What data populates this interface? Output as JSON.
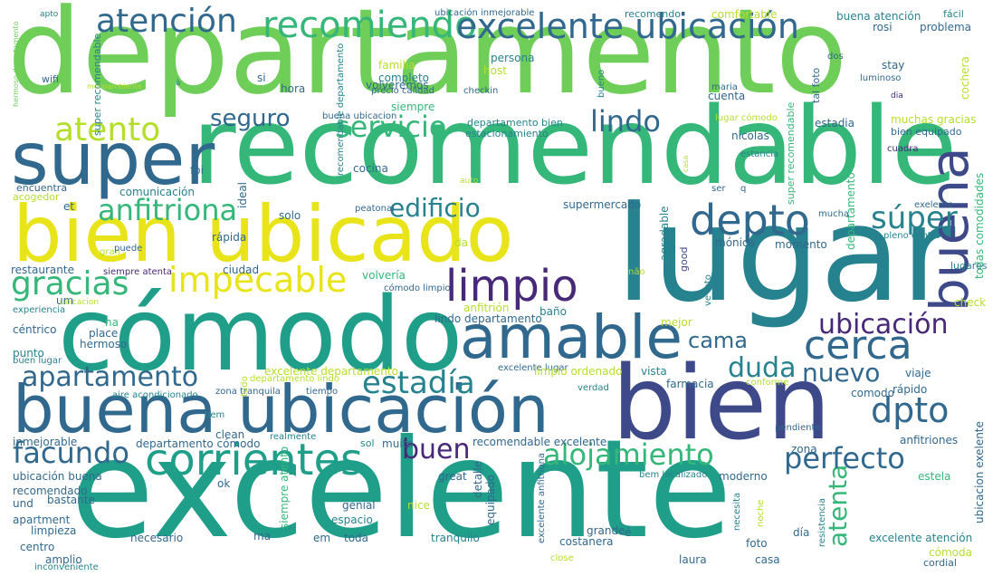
{
  "colors": {
    "yellow": "#e8e419",
    "lime": "#b5de2b",
    "light_green": "#6ece58",
    "green": "#35b779",
    "teal_green": "#1f9e89",
    "teal": "#26828e",
    "steel": "#31688e",
    "indigo": "#3e4989",
    "purple": "#482878",
    "deep_purple": "#440154"
  },
  "words": [
    {
      "text": "departamento",
      "color": "light_green"
    },
    {
      "text": "recomendable",
      "color": "green"
    },
    {
      "text": "excelente",
      "color": "teal_green"
    },
    {
      "text": "lugar",
      "color": "teal"
    },
    {
      "text": "bien ubicado",
      "color": "yellow"
    },
    {
      "text": "cómodo",
      "color": "teal_green"
    },
    {
      "text": "bien",
      "color": "indigo"
    },
    {
      "text": "buena ubicación",
      "color": "steel"
    },
    {
      "text": "super",
      "color": "steel"
    },
    {
      "text": "amable",
      "color": "steel"
    },
    {
      "text": "buena",
      "color": "indigo"
    },
    {
      "text": "recomiendo",
      "color": "green"
    },
    {
      "text": "excelente ubicación",
      "color": "steel"
    },
    {
      "text": "atención",
      "color": "steel"
    },
    {
      "text": "servicio",
      "color": "green"
    },
    {
      "text": "atento",
      "color": "lime"
    },
    {
      "text": "lindo",
      "color": "steel"
    },
    {
      "text": "seguro",
      "color": "steel"
    },
    {
      "text": "depto",
      "color": "steel"
    },
    {
      "text": "anfitriona",
      "color": "green"
    },
    {
      "text": "edificio",
      "color": "teal"
    },
    {
      "text": "súper",
      "color": "teal"
    },
    {
      "text": "gracias",
      "color": "green"
    },
    {
      "text": "impecable",
      "color": "yellow"
    },
    {
      "text": "limpio",
      "color": "purple"
    },
    {
      "text": "cerca",
      "color": "steel"
    },
    {
      "text": "ubicación",
      "color": "purple"
    },
    {
      "text": "cama",
      "color": "steel"
    },
    {
      "text": "apartamento",
      "color": "steel"
    },
    {
      "text": "estadía",
      "color": "teal"
    },
    {
      "text": "duda",
      "color": "teal"
    },
    {
      "text": "nuevo",
      "color": "steel"
    },
    {
      "text": "atenta",
      "color": "green"
    },
    {
      "text": "dpto",
      "color": "steel"
    },
    {
      "text": "facundo",
      "color": "steel"
    },
    {
      "text": "corrientes",
      "color": "teal_green"
    },
    {
      "text": "buen",
      "color": "purple"
    },
    {
      "text": "alojamiento",
      "color": "green"
    },
    {
      "text": "perfecto",
      "color": "steel"
    },
    {
      "text": "ubicación inmejorable",
      "color": "steel"
    },
    {
      "text": "recomendo",
      "color": "teal"
    },
    {
      "text": "comfortable",
      "color": "lime"
    },
    {
      "text": "buena atención",
      "color": "teal"
    },
    {
      "text": "fácil",
      "color": "teal"
    },
    {
      "text": "rosi",
      "color": "steel"
    },
    {
      "text": "problema",
      "color": "steel"
    },
    {
      "text": "apto",
      "color": "teal"
    },
    {
      "text": "hermoso departamento",
      "color": "light_green"
    },
    {
      "text": "super recomendable",
      "color": "teal"
    },
    {
      "text": "recomendable departamento",
      "color": "teal"
    },
    {
      "text": "wifi",
      "color": "steel"
    },
    {
      "text": "monoambiente",
      "color": "lime"
    },
    {
      "text": "à",
      "color": "teal"
    },
    {
      "text": "si",
      "color": "steel"
    },
    {
      "text": "hora",
      "color": "steel"
    },
    {
      "text": "familia",
      "color": "lime"
    },
    {
      "text": "completo",
      "color": "teal"
    },
    {
      "text": "precio calidad",
      "color": "steel"
    },
    {
      "text": "volveremos",
      "color": "steel"
    },
    {
      "text": "persona",
      "color": "teal"
    },
    {
      "text": "host",
      "color": "lime"
    },
    {
      "text": "checkin",
      "color": "steel"
    },
    {
      "text": "bueno",
      "color": "teal"
    },
    {
      "text": "maria",
      "color": "steel"
    },
    {
      "text": "cuenta",
      "color": "steel"
    },
    {
      "text": "dos",
      "color": "steel"
    },
    {
      "text": "luminoso",
      "color": "steel"
    },
    {
      "text": "stay",
      "color": "steel"
    },
    {
      "text": "dia",
      "color": "purple"
    },
    {
      "text": "cochera",
      "color": "lime"
    },
    {
      "text": "tal foto",
      "color": "steel"
    },
    {
      "text": "siempre",
      "color": "green"
    },
    {
      "text": "buena ubicacion",
      "color": "steel"
    },
    {
      "text": "departamento bien",
      "color": "teal"
    },
    {
      "text": "estacionamiento",
      "color": "teal"
    },
    {
      "text": "lugar cómodo",
      "color": "lime"
    },
    {
      "text": "estadia",
      "color": "steel"
    },
    {
      "text": "muchas gracias",
      "color": "lime"
    },
    {
      "text": "bien equipado",
      "color": "steel"
    },
    {
      "text": "nicolas",
      "color": "steel"
    },
    {
      "text": "cuadra",
      "color": "purple"
    },
    {
      "text": "foi",
      "color": "steel"
    },
    {
      "text": "cocina",
      "color": "steel"
    },
    {
      "text": "ideal",
      "color": "steel"
    },
    {
      "text": "estancia",
      "color": "teal"
    },
    {
      "text": "casa",
      "color": "lime"
    },
    {
      "text": "departamento tal",
      "color": "green"
    },
    {
      "text": "super recomendable",
      "color": "green"
    },
    {
      "text": "encuentra",
      "color": "steel"
    },
    {
      "text": "comunicación",
      "color": "teal"
    },
    {
      "text": "acogedor",
      "color": "lime"
    },
    {
      "text": "auto",
      "color": "lime"
    },
    {
      "text": "ser",
      "color": "steel"
    },
    {
      "text": "q",
      "color": "steel"
    },
    {
      "text": "todas comodidades",
      "color": "green"
    },
    {
      "text": "et",
      "color": "steel"
    },
    {
      "text": "solo",
      "color": "steel"
    },
    {
      "text": "peatonal",
      "color": "steel"
    },
    {
      "text": "supermercado",
      "color": "steel"
    },
    {
      "text": "agradable",
      "color": "teal"
    },
    {
      "text": "exelente",
      "color": "steel"
    },
    {
      "text": "mucha",
      "color": "steel"
    },
    {
      "text": "pleno centro",
      "color": "teal"
    },
    {
      "text": "rápida",
      "color": "steel"
    },
    {
      "text": "mónica",
      "color": "steel"
    },
    {
      "text": "momento",
      "color": "steel"
    },
    {
      "text": "gran",
      "color": "lime"
    },
    {
      "text": "puede",
      "color": "steel"
    },
    {
      "text": "da",
      "color": "lime"
    },
    {
      "text": "good",
      "color": "indigo"
    },
    {
      "text": "restaurante",
      "color": "steel"
    },
    {
      "text": "siempre atenta",
      "color": "purple"
    },
    {
      "text": "ciudad",
      "color": "steel"
    },
    {
      "text": "volvería",
      "color": "green"
    },
    {
      "text": "não",
      "color": "lime"
    },
    {
      "text": "lugares",
      "color": "teal"
    },
    {
      "text": "ve foto",
      "color": "teal"
    },
    {
      "text": "cómodo limpio",
      "color": "steel"
    },
    {
      "text": "check",
      "color": "lime"
    },
    {
      "text": "um",
      "color": "steel"
    },
    {
      "text": "ubicacion",
      "color": "lime"
    },
    {
      "text": "experiencia",
      "color": "teal"
    },
    {
      "text": "anfitrión",
      "color": "lime"
    },
    {
      "text": "baño",
      "color": "teal"
    },
    {
      "text": "lindo departamento",
      "color": "steel"
    },
    {
      "text": "mejor",
      "color": "lime"
    },
    {
      "text": "céntrico",
      "color": "steel"
    },
    {
      "text": "na",
      "color": "green"
    },
    {
      "text": "place",
      "color": "steel"
    },
    {
      "text": "hermoso",
      "color": "steel"
    },
    {
      "text": "punto",
      "color": "teal"
    },
    {
      "text": "buen lugar",
      "color": "teal"
    },
    {
      "text": "excelente departamento",
      "color": "lime"
    },
    {
      "text": "departamento lindo",
      "color": "lime"
    },
    {
      "text": "excelente lugar",
      "color": "steel"
    },
    {
      "text": "limpio ordenado",
      "color": "lime"
    },
    {
      "text": "vista",
      "color": "teal"
    },
    {
      "text": "viaje",
      "color": "steel"
    },
    {
      "text": "rápido",
      "color": "steel"
    },
    {
      "text": "farmacia",
      "color": "steel"
    },
    {
      "text": "conforme",
      "color": "lime"
    },
    {
      "text": "zona tranquila",
      "color": "steel"
    },
    {
      "text": "tiempo",
      "color": "steel"
    },
    {
      "text": "verdad",
      "color": "teal"
    },
    {
      "text": "comodo",
      "color": "steel"
    },
    {
      "text": "aire acondicionado",
      "color": "teal"
    },
    {
      "text": "bem",
      "color": "teal"
    },
    {
      "text": "clean",
      "color": "steel"
    },
    {
      "text": "pendiente",
      "color": "steel"
    },
    {
      "text": "departamento cómodo",
      "color": "steel"
    },
    {
      "text": "realmente",
      "color": "teal"
    },
    {
      "text": "sol",
      "color": "teal"
    },
    {
      "text": "muito",
      "color": "steel"
    },
    {
      "text": "recomendable excelente",
      "color": "steel"
    },
    {
      "text": "anfitriones",
      "color": "steel"
    },
    {
      "text": "inmejorable",
      "color": "steel"
    },
    {
      "text": "zona",
      "color": "steel"
    },
    {
      "text": "ubicación buena",
      "color": "steel"
    },
    {
      "text": "great",
      "color": "steel"
    },
    {
      "text": "bem localizado",
      "color": "teal"
    },
    {
      "text": "moderno",
      "color": "steel"
    },
    {
      "text": "estela",
      "color": "green"
    },
    {
      "text": "recomendado",
      "color": "steel"
    },
    {
      "text": "bastante",
      "color": "steel"
    },
    {
      "text": "ok",
      "color": "steel"
    },
    {
      "text": "und",
      "color": "steel"
    },
    {
      "text": "genial",
      "color": "steel"
    },
    {
      "text": "nice",
      "color": "lime"
    },
    {
      "text": "detalle",
      "color": "steel"
    },
    {
      "text": "equipado",
      "color": "steel"
    },
    {
      "text": "excelente anfitriona",
      "color": "steel"
    },
    {
      "text": "necesita",
      "color": "teal"
    },
    {
      "text": "noche",
      "color": "lime"
    },
    {
      "text": "resistencia",
      "color": "teal"
    },
    {
      "text": "ubicacion exelente",
      "color": "steel"
    },
    {
      "text": "apartment",
      "color": "steel"
    },
    {
      "text": "limpieza",
      "color": "steel"
    },
    {
      "text": "espacio",
      "color": "teal"
    },
    {
      "text": "ma",
      "color": "steel"
    },
    {
      "text": "siempre atento",
      "color": "green"
    },
    {
      "text": "tranquilo",
      "color": "teal"
    },
    {
      "text": "centro",
      "color": "steel"
    },
    {
      "text": "inconveniente",
      "color": "teal"
    },
    {
      "text": "necesario",
      "color": "steel"
    },
    {
      "text": "em",
      "color": "steel"
    },
    {
      "text": "toda",
      "color": "steel"
    },
    {
      "text": "grande",
      "color": "steel"
    },
    {
      "text": "é",
      "color": "steel"
    },
    {
      "text": "costanera",
      "color": "steel"
    },
    {
      "text": "día",
      "color": "steel"
    },
    {
      "text": "excelente atención",
      "color": "teal"
    },
    {
      "text": "tudo",
      "color": "lime"
    },
    {
      "text": "amplio",
      "color": "steel"
    },
    {
      "text": "close",
      "color": "lime"
    },
    {
      "text": "laura",
      "color": "steel"
    },
    {
      "text": "casa",
      "color": "steel"
    },
    {
      "text": "foto",
      "color": "steel"
    },
    {
      "text": "cómoda",
      "color": "lime"
    },
    {
      "text": "cordial",
      "color": "steel"
    }
  ]
}
